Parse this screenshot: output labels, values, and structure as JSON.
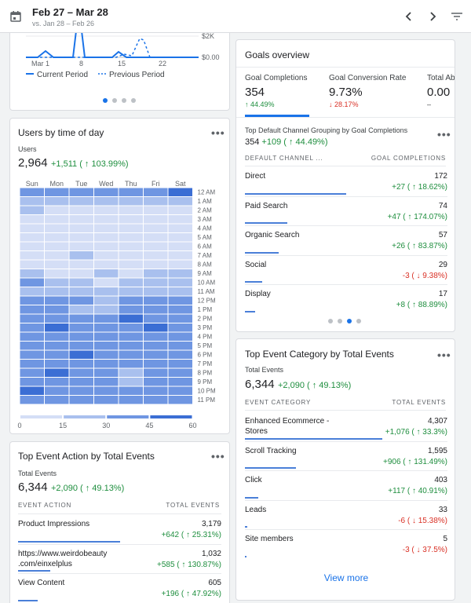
{
  "header": {
    "date_range": "Feb 27 – Mar 28",
    "compare_range": "vs. Jan 28 – Feb 26"
  },
  "top_chart": {
    "x_labels": [
      "Mar 1",
      "8",
      "15",
      "22"
    ],
    "y_labels": [
      "$2K",
      "$0.00"
    ],
    "legend_current": "Current Period",
    "legend_previous": "Previous Period",
    "active_dot": 0
  },
  "heatmap": {
    "title": "Users by time of day",
    "metric_label": "Users",
    "metric_value": "2,964",
    "metric_delta": "+1,511 ( ↑ 103.99%)",
    "days": [
      "Sun",
      "Mon",
      "Tue",
      "Wed",
      "Thu",
      "Fri",
      "Sat"
    ],
    "hours": [
      "12 AM",
      "1 AM",
      "2 AM",
      "3 AM",
      "4 AM",
      "5 AM",
      "6 AM",
      "7 AM",
      "8 AM",
      "9 AM",
      "10 AM",
      "11 AM",
      "12 PM",
      "1 PM",
      "2 PM",
      "3 PM",
      "4 PM",
      "5 PM",
      "6 PM",
      "7 PM",
      "8 PM",
      "9 PM",
      "10 PM",
      "11 PM"
    ],
    "scale_labels": [
      "0",
      "15",
      "30",
      "45",
      "60"
    ],
    "levels": [
      [
        3,
        3,
        3,
        3,
        3,
        3,
        4
      ],
      [
        2,
        2,
        2,
        2,
        2,
        2,
        2
      ],
      [
        2,
        1,
        1,
        1,
        1,
        1,
        1
      ],
      [
        1,
        1,
        1,
        1,
        1,
        1,
        1
      ],
      [
        1,
        1,
        1,
        1,
        1,
        1,
        1
      ],
      [
        1,
        1,
        1,
        1,
        1,
        1,
        1
      ],
      [
        1,
        1,
        1,
        1,
        1,
        1,
        1
      ],
      [
        1,
        1,
        2,
        1,
        1,
        1,
        1
      ],
      [
        1,
        1,
        1,
        1,
        1,
        1,
        1
      ],
      [
        2,
        1,
        1,
        2,
        1,
        2,
        2
      ],
      [
        3,
        2,
        2,
        1,
        2,
        2,
        2
      ],
      [
        2,
        2,
        2,
        2,
        2,
        2,
        2
      ],
      [
        3,
        3,
        3,
        2,
        3,
        3,
        3
      ],
      [
        3,
        3,
        2,
        2,
        3,
        3,
        3
      ],
      [
        3,
        3,
        3,
        3,
        4,
        3,
        3
      ],
      [
        3,
        4,
        3,
        3,
        3,
        4,
        3
      ],
      [
        3,
        3,
        3,
        3,
        3,
        3,
        3
      ],
      [
        3,
        3,
        3,
        3,
        3,
        3,
        3
      ],
      [
        3,
        3,
        4,
        3,
        3,
        3,
        3
      ],
      [
        3,
        3,
        3,
        3,
        3,
        3,
        3
      ],
      [
        3,
        4,
        3,
        3,
        2,
        3,
        3
      ],
      [
        3,
        3,
        3,
        3,
        2,
        3,
        3
      ],
      [
        4,
        3,
        3,
        3,
        3,
        3,
        3
      ],
      [
        3,
        3,
        3,
        3,
        3,
        3,
        3
      ]
    ]
  },
  "goals": {
    "title": "Goals overview",
    "tabs": [
      {
        "label": "Goal Completions",
        "value": "354",
        "delta": "↑ 44.49%",
        "dir": "pos"
      },
      {
        "label": "Goal Conversion Rate",
        "value": "9.73%",
        "delta": "↓ 28.17%",
        "dir": "neg"
      },
      {
        "label": "Total Ab",
        "value": "0.00",
        "delta": "–",
        "dir": "none"
      }
    ],
    "sub_title": "Top Default Channel Grouping by Goal Completions",
    "sub_value": "354",
    "sub_delta": "+109 ( ↑ 44.49%)",
    "col_left": "DEFAULT CHANNEL ...",
    "col_right": "GOAL COMPLETIONS",
    "rows": [
      {
        "label": "Direct",
        "value": "172",
        "delta": "+27 ( ↑ 18.62%)",
        "dir": "pos",
        "share": 0.5
      },
      {
        "label": "Paid Search",
        "value": "74",
        "delta": "+47 ( ↑ 174.07%)",
        "dir": "pos",
        "share": 0.21
      },
      {
        "label": "Organic Search",
        "value": "57",
        "delta": "+26 ( ↑ 83.87%)",
        "dir": "pos",
        "share": 0.165
      },
      {
        "label": "Social",
        "value": "29",
        "delta": "-3 ( ↓ 9.38%)",
        "dir": "neg",
        "share": 0.085
      },
      {
        "label": "Display",
        "value": "17",
        "delta": "+8 ( ↑ 88.89%)",
        "dir": "pos",
        "share": 0.05
      }
    ],
    "active_dot": 2
  },
  "event_action": {
    "title": "Top Event Action by Total Events",
    "metric_label": "Total Events",
    "metric_value": "6,344",
    "metric_delta": "+2,090 ( ↑ 49.13%)",
    "col_left": "EVENT ACTION",
    "col_right": "TOTAL EVENTS",
    "rows": [
      {
        "label": "Product Impressions",
        "value": "3,179",
        "delta": "+642 ( ↑ 25.31%)",
        "dir": "pos",
        "share": 0.5
      },
      {
        "label": "https://www.weirdobeauty",
        "label2": ".com/einxelplus",
        "value": "1,032",
        "delta": "+585 ( ↑ 130.87%)",
        "dir": "pos",
        "share": 0.16
      },
      {
        "label": "View Content",
        "value": "605",
        "delta": "+196 ( ↑ 47.92%)",
        "dir": "pos",
        "share": 0.095
      }
    ]
  },
  "event_category": {
    "title": "Top Event Category by Total Events",
    "metric_label": "Total Events",
    "metric_value": "6,344",
    "metric_delta": "+2,090 ( ↑ 49.13%)",
    "col_left": "EVENT CATEGORY",
    "col_right": "TOTAL EVENTS",
    "rows": [
      {
        "label": "Enhanced Ecommerce -",
        "label2": "Stores",
        "value": "4,307",
        "delta": "+1,076 ( ↑ 33.3%)",
        "dir": "pos",
        "share": 0.68
      },
      {
        "label": "Scroll Tracking",
        "value": "1,595",
        "delta": "+906 ( ↑ 131.49%)",
        "dir": "pos",
        "share": 0.25
      },
      {
        "label": "Click",
        "value": "403",
        "delta": "+117 ( ↑ 40.91%)",
        "dir": "pos",
        "share": 0.065
      },
      {
        "label": "Leads",
        "value": "33",
        "delta": "-6 ( ↓ 15.38%)",
        "dir": "neg",
        "share": 0.01
      },
      {
        "label": "Site members",
        "value": "5",
        "delta": "-3 ( ↓ 37.5%)",
        "dir": "neg",
        "share": 0.003
      }
    ],
    "view_more": "View more"
  },
  "colors": {
    "accent": "#1a73e8",
    "positive": "#1e8e3e",
    "negative": "#d93025",
    "heat_levels": [
      "#e8eefa",
      "#d4def6",
      "#a9c0ee",
      "#6f96e2",
      "#3b6ed4"
    ]
  }
}
